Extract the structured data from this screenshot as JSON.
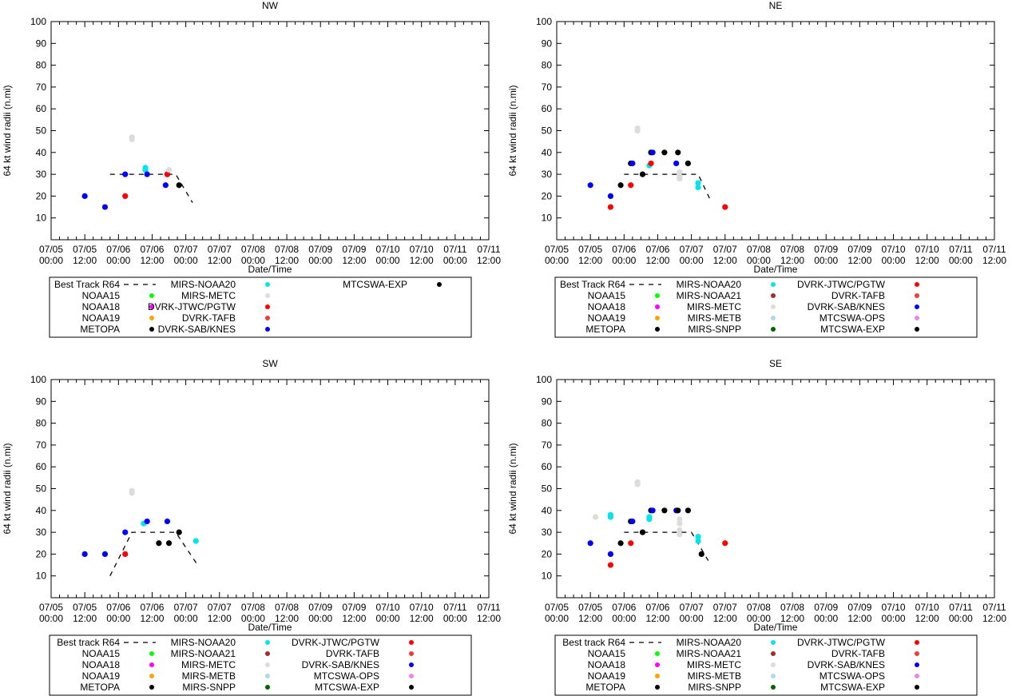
{
  "chart_data": [
    {
      "type": "scatter",
      "title": "NW",
      "xlabel": "Date/Time",
      "ylabel": "64 kt wind radii (n.mi)",
      "ylim": [
        0,
        100
      ],
      "yticks": [
        "10",
        "20",
        "30",
        "40",
        "50",
        "60",
        "70",
        "80",
        "90",
        "100"
      ],
      "xlim": [
        0,
        13
      ],
      "xticks": [
        {
          "date": "07/05",
          "time": "00:00"
        },
        {
          "date": "07/05",
          "time": "12:00"
        },
        {
          "date": "07/06",
          "time": "00:00"
        },
        {
          "date": "07/06",
          "time": "12:00"
        },
        {
          "date": "07/07",
          "time": "00:00"
        },
        {
          "date": "07/07",
          "time": "12:00"
        },
        {
          "date": "07/08",
          "time": "00:00"
        },
        {
          "date": "07/08",
          "time": "12:00"
        },
        {
          "date": "07/09",
          "time": "00:00"
        },
        {
          "date": "07/09",
          "time": "12:00"
        },
        {
          "date": "07/10",
          "time": "00:00"
        },
        {
          "date": "07/10",
          "time": "12:00"
        },
        {
          "date": "07/11",
          "time": "00:00"
        },
        {
          "date": "07/11",
          "time": "12:00"
        }
      ],
      "best_track": [
        [
          1.75,
          30
        ],
        [
          3.7,
          30
        ],
        [
          4.2,
          17
        ]
      ],
      "legend": [
        {
          "label": "Best Track R64",
          "color": "#000000",
          "kind": "dash"
        },
        {
          "label": "NOAA15",
          "color": "#00ff00",
          "kind": "dot"
        },
        {
          "label": "NOAA18",
          "color": "#ff00ff",
          "kind": "dot"
        },
        {
          "label": "NOAA19",
          "color": "#ffa500",
          "kind": "dot"
        },
        {
          "label": "METOPA",
          "color": "#000000",
          "kind": "dot"
        },
        {
          "label": "MIRS-NOAA20",
          "color": "#00e5ee",
          "kind": "dot"
        },
        {
          "label": "MIRS-METC",
          "color": "#dcdcdc",
          "kind": "dot"
        },
        {
          "label": "DVRK-JTWC/PGTW",
          "color": "#ff0000",
          "kind": "dot"
        },
        {
          "label": "DVRK-TAFB",
          "color": "#ee3b3b",
          "kind": "dot"
        },
        {
          "label": "DVRK-SAB/KNES",
          "color": "#0000ff",
          "kind": "dot"
        },
        {
          "label": "MTCSWA-EXP",
          "color": "#000000",
          "kind": "dot"
        }
      ],
      "legend_rows": 5,
      "points": [
        {
          "x": 1.0,
          "y": 20,
          "c": "#0000ff"
        },
        {
          "x": 1.6,
          "y": 15,
          "c": "#0000ff"
        },
        {
          "x": 2.2,
          "y": 30,
          "c": "#0000ff"
        },
        {
          "x": 2.2,
          "y": 20,
          "c": "#ff0000"
        },
        {
          "x": 2.4,
          "y": 46,
          "c": "#dcdcdc"
        },
        {
          "x": 2.4,
          "y": 47,
          "c": "#dcdcdc"
        },
        {
          "x": 2.8,
          "y": 32,
          "c": "#00e5ee"
        },
        {
          "x": 2.8,
          "y": 33,
          "c": "#00e5ee"
        },
        {
          "x": 2.85,
          "y": 30,
          "c": "#0000ff"
        },
        {
          "x": 3.4,
          "y": 25,
          "c": "#0000ff"
        },
        {
          "x": 3.45,
          "y": 30,
          "c": "#0000ff"
        },
        {
          "x": 3.45,
          "y": 30,
          "c": "#ff0000"
        },
        {
          "x": 3.5,
          "y": 32,
          "c": "#dcdcdc"
        },
        {
          "x": 3.8,
          "y": 25,
          "c": "#000000"
        }
      ]
    },
    {
      "type": "scatter",
      "title": "NE",
      "xlabel": "Date/Time",
      "ylabel": "64 kt wind radii (n.mi)",
      "ylim": [
        0,
        100
      ],
      "yticks": [
        "10",
        "20",
        "30",
        "40",
        "50",
        "60",
        "70",
        "80",
        "90",
        "100"
      ],
      "xlim": [
        0,
        13
      ],
      "xticks": [
        {
          "date": "07/05",
          "time": "00:00"
        },
        {
          "date": "07/05",
          "time": "12:00"
        },
        {
          "date": "07/06",
          "time": "00:00"
        },
        {
          "date": "07/06",
          "time": "12:00"
        },
        {
          "date": "07/07",
          "time": "00:00"
        },
        {
          "date": "07/07",
          "time": "12:00"
        },
        {
          "date": "07/08",
          "time": "00:00"
        },
        {
          "date": "07/08",
          "time": "12:00"
        },
        {
          "date": "07/09",
          "time": "00:00"
        },
        {
          "date": "07/09",
          "time": "12:00"
        },
        {
          "date": "07/10",
          "time": "00:00"
        },
        {
          "date": "07/10",
          "time": "12:00"
        },
        {
          "date": "07/11",
          "time": "00:00"
        },
        {
          "date": "07/11",
          "time": "12:00"
        }
      ],
      "best_track": [
        [
          2.0,
          30
        ],
        [
          4.2,
          30
        ],
        [
          4.6,
          17
        ]
      ],
      "legend": [
        {
          "label": "Best Track R64",
          "color": "#000000",
          "kind": "dash"
        },
        {
          "label": "NOAA15",
          "color": "#00ff00",
          "kind": "dot"
        },
        {
          "label": "NOAA18",
          "color": "#ff00ff",
          "kind": "dot"
        },
        {
          "label": "NOAA19",
          "color": "#ffa500",
          "kind": "dot"
        },
        {
          "label": "METOPA",
          "color": "#000000",
          "kind": "dot"
        },
        {
          "label": "MIRS-NOAA20",
          "color": "#00e5ee",
          "kind": "dot"
        },
        {
          "label": "MIRS-NOAA21",
          "color": "#a52a2a",
          "kind": "dot"
        },
        {
          "label": "MIRS-METC",
          "color": "#dcdcdc",
          "kind": "dot"
        },
        {
          "label": "MIRS-METB",
          "color": "#add8e6",
          "kind": "dot"
        },
        {
          "label": "MIRS-SNPP",
          "color": "#006400",
          "kind": "dot"
        },
        {
          "label": "DVRK-JTWC/PGTW",
          "color": "#ff0000",
          "kind": "dot"
        },
        {
          "label": "DVRK-TAFB",
          "color": "#ee3b3b",
          "kind": "dot"
        },
        {
          "label": "DVRK-SAB/KNES",
          "color": "#0000ff",
          "kind": "dot"
        },
        {
          "label": "MTCSWA-OPS",
          "color": "#ee82ee",
          "kind": "dot"
        },
        {
          "label": "MTCSWA-EXP",
          "color": "#000000",
          "kind": "dot"
        }
      ],
      "legend_rows": 5,
      "points": [
        {
          "x": 1.0,
          "y": 25,
          "c": "#0000ff"
        },
        {
          "x": 1.6,
          "y": 20,
          "c": "#0000ff"
        },
        {
          "x": 1.6,
          "y": 15,
          "c": "#ff0000"
        },
        {
          "x": 1.9,
          "y": 25,
          "c": "#000000"
        },
        {
          "x": 2.2,
          "y": 35,
          "c": "#000000"
        },
        {
          "x": 2.25,
          "y": 35,
          "c": "#0000ff"
        },
        {
          "x": 2.2,
          "y": 25,
          "c": "#ff0000"
        },
        {
          "x": 2.4,
          "y": 50,
          "c": "#dcdcdc"
        },
        {
          "x": 2.4,
          "y": 51,
          "c": "#dcdcdc"
        },
        {
          "x": 2.55,
          "y": 30,
          "c": "#000000"
        },
        {
          "x": 2.75,
          "y": 34,
          "c": "#00e5ee"
        },
        {
          "x": 2.8,
          "y": 35,
          "c": "#ff0000"
        },
        {
          "x": 2.8,
          "y": 40,
          "c": "#000000"
        },
        {
          "x": 2.85,
          "y": 40,
          "c": "#0000ff"
        },
        {
          "x": 3.2,
          "y": 40,
          "c": "#000000"
        },
        {
          "x": 3.55,
          "y": 35,
          "c": "#0000ff"
        },
        {
          "x": 3.6,
          "y": 40,
          "c": "#000000"
        },
        {
          "x": 3.65,
          "y": 31,
          "c": "#dcdcdc"
        },
        {
          "x": 3.65,
          "y": 29,
          "c": "#dcdcdc"
        },
        {
          "x": 3.65,
          "y": 28,
          "c": "#dcdcdc"
        },
        {
          "x": 3.9,
          "y": 35,
          "c": "#000000"
        },
        {
          "x": 4.2,
          "y": 26,
          "c": "#00e5ee"
        },
        {
          "x": 4.2,
          "y": 24,
          "c": "#00e5ee"
        },
        {
          "x": 5.0,
          "y": 15,
          "c": "#ff0000"
        }
      ]
    },
    {
      "type": "scatter",
      "title": "SW",
      "xlabel": "Date/Time",
      "ylabel": "64 kt wind radii (n.mi)",
      "ylim": [
        0,
        100
      ],
      "yticks": [
        "10",
        "20",
        "30",
        "40",
        "50",
        "60",
        "70",
        "80",
        "90",
        "100"
      ],
      "xlim": [
        0,
        13
      ],
      "xticks": [
        {
          "date": "07/05",
          "time": "00:00"
        },
        {
          "date": "07/05",
          "time": "12:00"
        },
        {
          "date": "07/06",
          "time": "00:00"
        },
        {
          "date": "07/06",
          "time": "12:00"
        },
        {
          "date": "07/07",
          "time": "00:00"
        },
        {
          "date": "07/07",
          "time": "12:00"
        },
        {
          "date": "07/08",
          "time": "00:00"
        },
        {
          "date": "07/08",
          "time": "12:00"
        },
        {
          "date": "07/09",
          "time": "00:00"
        },
        {
          "date": "07/09",
          "time": "12:00"
        },
        {
          "date": "07/10",
          "time": "00:00"
        },
        {
          "date": "07/10",
          "time": "12:00"
        },
        {
          "date": "07/11",
          "time": "00:00"
        },
        {
          "date": "07/11",
          "time": "12:00"
        }
      ],
      "best_track": [
        [
          1.75,
          10
        ],
        [
          2.4,
          30
        ],
        [
          3.7,
          30
        ],
        [
          4.35,
          15
        ]
      ],
      "legend": [
        {
          "label": "Best track R64",
          "color": "#000000",
          "kind": "dash"
        },
        {
          "label": "NOAA15",
          "color": "#00ff00",
          "kind": "dot"
        },
        {
          "label": "NOAA18",
          "color": "#ff00ff",
          "kind": "dot"
        },
        {
          "label": "NOAA19",
          "color": "#ffa500",
          "kind": "dot"
        },
        {
          "label": "METOPA",
          "color": "#000000",
          "kind": "dot"
        },
        {
          "label": "MIRS-NOAA20",
          "color": "#00e5ee",
          "kind": "dot"
        },
        {
          "label": "MIRS-NOAA21",
          "color": "#a52a2a",
          "kind": "dot"
        },
        {
          "label": "MIRS-METC",
          "color": "#dcdcdc",
          "kind": "dot"
        },
        {
          "label": "MIRS-METB",
          "color": "#add8e6",
          "kind": "dot"
        },
        {
          "label": "MIRS-SNPP",
          "color": "#006400",
          "kind": "dot"
        },
        {
          "label": "DVRK-JTWC/PGTW",
          "color": "#ff0000",
          "kind": "dot"
        },
        {
          "label": "DVRK-TAFB",
          "color": "#ee3b3b",
          "kind": "dot"
        },
        {
          "label": "DVRK-SAB/KNES",
          "color": "#0000ff",
          "kind": "dot"
        },
        {
          "label": "MTCSWA-OPS",
          "color": "#ee82ee",
          "kind": "dot"
        },
        {
          "label": "MTCSWA-EXP",
          "color": "#000000",
          "kind": "dot"
        }
      ],
      "legend_rows": 5,
      "points": [
        {
          "x": 1.0,
          "y": 20,
          "c": "#0000ff"
        },
        {
          "x": 1.6,
          "y": 20,
          "c": "#0000ff"
        },
        {
          "x": 2.2,
          "y": 30,
          "c": "#0000ff"
        },
        {
          "x": 2.2,
          "y": 20,
          "c": "#ff0000"
        },
        {
          "x": 2.4,
          "y": 48,
          "c": "#dcdcdc"
        },
        {
          "x": 2.4,
          "y": 49,
          "c": "#dcdcdc"
        },
        {
          "x": 2.75,
          "y": 34,
          "c": "#00e5ee"
        },
        {
          "x": 2.85,
          "y": 35,
          "c": "#0000ff"
        },
        {
          "x": 3.2,
          "y": 25,
          "c": "#000000"
        },
        {
          "x": 3.45,
          "y": 35,
          "c": "#0000ff"
        },
        {
          "x": 3.5,
          "y": 25,
          "c": "#000000"
        },
        {
          "x": 3.8,
          "y": 30,
          "c": "#000000"
        },
        {
          "x": 4.3,
          "y": 26,
          "c": "#00e5ee"
        }
      ]
    },
    {
      "type": "scatter",
      "title": "SE",
      "xlabel": "Date/Time",
      "ylabel": "64 kt wind radii (n.mi)",
      "ylim": [
        0,
        100
      ],
      "yticks": [
        "10",
        "20",
        "30",
        "40",
        "50",
        "60",
        "70",
        "80",
        "90",
        "100"
      ],
      "xlim": [
        0,
        13
      ],
      "xticks": [
        {
          "date": "07/05",
          "time": "00:00"
        },
        {
          "date": "07/05",
          "time": "12:00"
        },
        {
          "date": "07/06",
          "time": "00:00"
        },
        {
          "date": "07/06",
          "time": "12:00"
        },
        {
          "date": "07/07",
          "time": "00:00"
        },
        {
          "date": "07/07",
          "time": "12:00"
        },
        {
          "date": "07/08",
          "time": "00:00"
        },
        {
          "date": "07/08",
          "time": "12:00"
        },
        {
          "date": "07/09",
          "time": "00:00"
        },
        {
          "date": "07/09",
          "time": "12:00"
        },
        {
          "date": "07/10",
          "time": "00:00"
        },
        {
          "date": "07/10",
          "time": "12:00"
        },
        {
          "date": "07/11",
          "time": "00:00"
        },
        {
          "date": "07/11",
          "time": "12:00"
        }
      ],
      "best_track": [
        [
          2.0,
          30
        ],
        [
          4.0,
          30
        ],
        [
          4.5,
          17
        ]
      ],
      "legend": [
        {
          "label": "Best track R64",
          "color": "#000000",
          "kind": "dash"
        },
        {
          "label": "NOAA15",
          "color": "#00ff00",
          "kind": "dot"
        },
        {
          "label": "NOAA18",
          "color": "#ff00ff",
          "kind": "dot"
        },
        {
          "label": "NOAA19",
          "color": "#ffa500",
          "kind": "dot"
        },
        {
          "label": "METOPA",
          "color": "#000000",
          "kind": "dot"
        },
        {
          "label": "MIRS-NOAA20",
          "color": "#00e5ee",
          "kind": "dot"
        },
        {
          "label": "MIRS-NOAA21",
          "color": "#a52a2a",
          "kind": "dot"
        },
        {
          "label": "MIRS-METC",
          "color": "#dcdcdc",
          "kind": "dot"
        },
        {
          "label": "MIRS-METB",
          "color": "#add8e6",
          "kind": "dot"
        },
        {
          "label": "MIRS-SNPP",
          "color": "#006400",
          "kind": "dot"
        },
        {
          "label": "DVRK-JTWC/PGTW",
          "color": "#ff0000",
          "kind": "dot"
        },
        {
          "label": "DVRK-TAFB",
          "color": "#ee3b3b",
          "kind": "dot"
        },
        {
          "label": "DVRK-SAB/KNES",
          "color": "#0000ff",
          "kind": "dot"
        },
        {
          "label": "MTCSWA-OPS",
          "color": "#ee82ee",
          "kind": "dot"
        },
        {
          "label": "MTCSWA-EXP",
          "color": "#000000",
          "kind": "dot"
        }
      ],
      "legend_rows": 5,
      "points": [
        {
          "x": 1.0,
          "y": 25,
          "c": "#0000ff"
        },
        {
          "x": 1.15,
          "y": 37,
          "c": "#dcdcdc"
        },
        {
          "x": 1.6,
          "y": 37,
          "c": "#00e5ee"
        },
        {
          "x": 1.6,
          "y": 38,
          "c": "#00e5ee"
        },
        {
          "x": 1.6,
          "y": 20,
          "c": "#0000ff"
        },
        {
          "x": 1.6,
          "y": 15,
          "c": "#ff0000"
        },
        {
          "x": 1.9,
          "y": 25,
          "c": "#000000"
        },
        {
          "x": 2.2,
          "y": 35,
          "c": "#000000"
        },
        {
          "x": 2.25,
          "y": 35,
          "c": "#0000ff"
        },
        {
          "x": 2.2,
          "y": 25,
          "c": "#ff0000"
        },
        {
          "x": 2.4,
          "y": 52,
          "c": "#dcdcdc"
        },
        {
          "x": 2.4,
          "y": 53,
          "c": "#dcdcdc"
        },
        {
          "x": 2.55,
          "y": 30,
          "c": "#000000"
        },
        {
          "x": 2.75,
          "y": 36,
          "c": "#00e5ee"
        },
        {
          "x": 2.75,
          "y": 37,
          "c": "#00e5ee"
        },
        {
          "x": 2.8,
          "y": 40,
          "c": "#000000"
        },
        {
          "x": 2.85,
          "y": 40,
          "c": "#0000ff"
        },
        {
          "x": 3.2,
          "y": 40,
          "c": "#000000"
        },
        {
          "x": 3.55,
          "y": 40,
          "c": "#0000ff"
        },
        {
          "x": 3.6,
          "y": 40,
          "c": "#000000"
        },
        {
          "x": 3.65,
          "y": 36,
          "c": "#dcdcdc"
        },
        {
          "x": 3.65,
          "y": 34,
          "c": "#dcdcdc"
        },
        {
          "x": 3.65,
          "y": 31,
          "c": "#dcdcdc"
        },
        {
          "x": 3.65,
          "y": 29,
          "c": "#dcdcdc"
        },
        {
          "x": 3.9,
          "y": 40,
          "c": "#000000"
        },
        {
          "x": 4.2,
          "y": 28,
          "c": "#00e5ee"
        },
        {
          "x": 4.2,
          "y": 26,
          "c": "#00e5ee"
        },
        {
          "x": 4.3,
          "y": 20,
          "c": "#000000"
        },
        {
          "x": 5.0,
          "y": 25,
          "c": "#ff0000"
        }
      ]
    }
  ]
}
